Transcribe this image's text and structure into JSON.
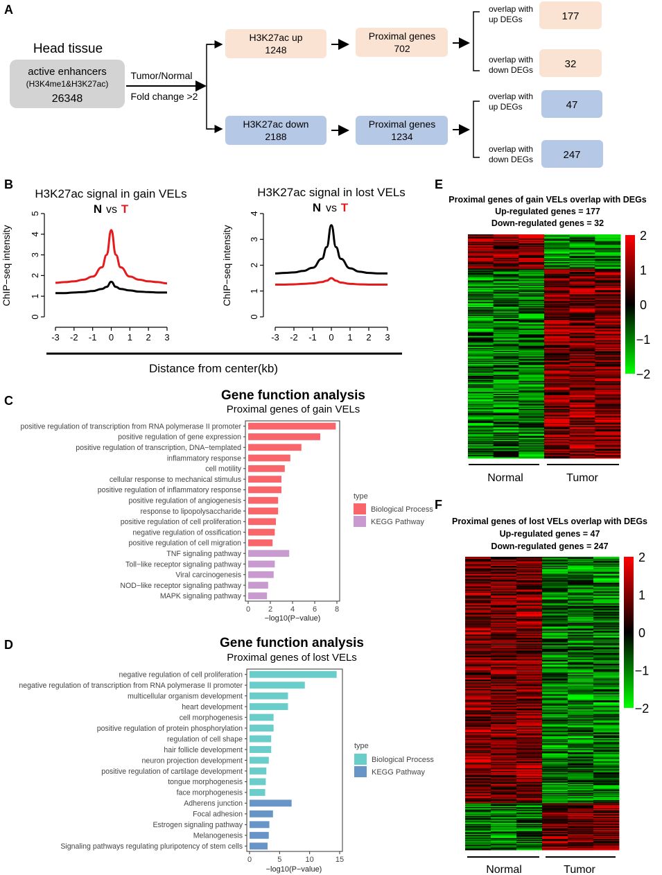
{
  "panelA": {
    "letter": "A",
    "head_tissue": "Head tissue",
    "enhancer_line1": "active enhancers",
    "enhancer_line2": "(H3K4me1&H3K27ac)",
    "enhancer_count": "26348",
    "arrow_top": "Tumor/Normal",
    "arrow_bottom": "Fold change >2",
    "up_label": "H3K27ac up",
    "up_count": "1248",
    "down_label": "H3K27ac down",
    "down_count": "2188",
    "prox_label": "Proximal genes",
    "prox_up_count": "702",
    "prox_down_count": "1234",
    "overlap_up_l1": "overlap with",
    "overlap_up_l2": "up DEGs",
    "overlap_down_l1": "overlap with",
    "overlap_down_l2": "down DEGs",
    "gain_up": "177",
    "gain_down": "32",
    "lost_up": "47",
    "lost_down": "247",
    "color_up": "#fbe3d3",
    "color_down": "#b5c8e6",
    "color_grey": "#d3d3d3"
  },
  "panelB": {
    "letter": "B",
    "left_title": "H3K27ac signal in gain VELs",
    "right_title": "H3K27ac signal in lost VELs",
    "n_label": "N",
    "vs_label": "vs",
    "t_label": "T",
    "ylabel": "ChIP−seq intensity",
    "xlabel": "Distance from center(kb)"
  },
  "panelC": {
    "letter": "C",
    "title": "Gene function analysis",
    "subtitle": "Proximal genes of gain VELs",
    "xlabel": "−log10(P−value)",
    "legend_title": "type",
    "legend_bp": "Biological Process",
    "legend_kegg": "KEGG Pathway"
  },
  "panelD": {
    "letter": "D",
    "title": "Gene function analysis",
    "subtitle": "Proximal genes of lost VELs",
    "xlabel": "−log10(P−value)",
    "legend_title": "type",
    "legend_bp": "Biological Process",
    "legend_kegg": "KEGG Pathway"
  },
  "panelE": {
    "letter": "E",
    "title": "Proximal genes of gain VELs overlap with DEGs",
    "line2": "Up-regulated genes = 177",
    "line3": "Down-regulated genes = 32",
    "group1": "Normal",
    "group2": "Tumor"
  },
  "panelF": {
    "letter": "F",
    "title": "Proximal genes of lost VELs overlap with DEGs",
    "line2": "Up-regulated genes = 47",
    "line3": "Down-regulated genes = 247",
    "group1": "Normal",
    "group2": "Tumor"
  },
  "chart_data": [
    {
      "id": "B-left",
      "type": "line",
      "title": "H3K27ac signal in gain VELs",
      "xlabel": "Distance from center(kb)",
      "ylabel": "ChIP−seq intensity",
      "x": [
        -3,
        -2.5,
        -2,
        -1.5,
        -1,
        -0.5,
        -0.25,
        0,
        0.25,
        0.5,
        1,
        1.5,
        2,
        2.5,
        3
      ],
      "xlim": [
        -3,
        3
      ],
      "ylim": [
        0,
        5
      ],
      "xticks": [
        -3,
        -2,
        -1,
        0,
        1,
        2,
        3
      ],
      "yticks": [
        0,
        1,
        2,
        3,
        4,
        5
      ],
      "series": [
        {
          "name": "T",
          "color": "#e41a1c",
          "values": [
            1.65,
            1.68,
            1.72,
            1.8,
            1.95,
            2.4,
            3.0,
            4.2,
            3.0,
            2.4,
            1.95,
            1.8,
            1.72,
            1.68,
            1.62
          ]
        },
        {
          "name": "N",
          "color": "#000000",
          "values": [
            1.15,
            1.15,
            1.18,
            1.2,
            1.25,
            1.35,
            1.45,
            1.7,
            1.45,
            1.35,
            1.28,
            1.22,
            1.2,
            1.18,
            1.18
          ]
        }
      ]
    },
    {
      "id": "B-right",
      "type": "line",
      "title": "H3K27ac signal in lost VELs",
      "xlabel": "Distance from center(kb)",
      "ylabel": "ChIP−seq intensity",
      "x": [
        -3,
        -2.5,
        -2,
        -1.5,
        -1,
        -0.5,
        -0.25,
        0,
        0.25,
        0.5,
        1,
        1.5,
        2,
        2.5,
        3
      ],
      "xlim": [
        -3,
        3
      ],
      "ylim": [
        0,
        4
      ],
      "xticks": [
        -3,
        -2,
        -1,
        0,
        1,
        2,
        3
      ],
      "yticks": [
        0,
        1,
        2,
        3,
        4
      ],
      "series": [
        {
          "name": "N",
          "color": "#000000",
          "values": [
            1.68,
            1.7,
            1.72,
            1.78,
            1.9,
            2.25,
            2.7,
            3.55,
            2.7,
            2.25,
            1.88,
            1.75,
            1.7,
            1.68,
            1.68
          ]
        },
        {
          "name": "T",
          "color": "#e41a1c",
          "values": [
            1.25,
            1.25,
            1.26,
            1.28,
            1.3,
            1.35,
            1.4,
            1.5,
            1.4,
            1.33,
            1.28,
            1.26,
            1.25,
            1.25,
            1.25
          ]
        }
      ]
    },
    {
      "id": "C",
      "type": "bar",
      "orientation": "horizontal",
      "title": "Gene function analysis",
      "subtitle": "Proximal genes of gain VELs",
      "xlabel": "−log10(P−value)",
      "xlim": [
        0,
        8
      ],
      "xticks": [
        0,
        2,
        4,
        6,
        8
      ],
      "categories": [
        "positive regulation of transcription from RNA polymerase II promoter",
        "positive regulation of gene expression",
        "positive regulation of transcription, DNA−templated",
        "inflammatory response",
        "cell motility",
        "cellular response to mechanical stimulus",
        "positive regulation of inflammatory response",
        "positive regulation of angiogenesis",
        "response to lipopolysaccharide",
        "positive regulation of cell proliferation",
        "negative regulation of ossification",
        "positive regulation of cell migration",
        "TNF signaling pathway",
        "Toll−like receptor signaling pathway",
        "Viral carcinogenesis",
        "NOD−like receptor signaling pathway",
        "MAPK signaling pathway"
      ],
      "values": [
        7.9,
        6.5,
        4.8,
        3.8,
        3.3,
        3.0,
        3.0,
        2.7,
        2.7,
        2.5,
        2.4,
        2.2,
        3.7,
        2.4,
        2.3,
        1.8,
        1.7
      ],
      "types": [
        "BP",
        "BP",
        "BP",
        "BP",
        "BP",
        "BP",
        "BP",
        "BP",
        "BP",
        "BP",
        "BP",
        "BP",
        "KEGG",
        "KEGG",
        "KEGG",
        "KEGG",
        "KEGG"
      ],
      "colors": {
        "BP": "#f8666b",
        "KEGG": "#c89ad0"
      }
    },
    {
      "id": "D",
      "type": "bar",
      "orientation": "horizontal",
      "title": "Gene function analysis",
      "subtitle": "Proximal genes of lost VELs",
      "xlabel": "−log10(P−value)",
      "xlim": [
        0,
        15
      ],
      "xticks": [
        0,
        5,
        10,
        15
      ],
      "categories": [
        "negative regulation of cell proliferation",
        "negative regulation of transcription from RNA polymerase II promoter",
        "multicellular organism development",
        "heart development",
        "cell morphogenesis",
        "positive regulation of protein phosphorylation",
        "regulation of cell shape",
        "hair follicle development",
        "neuron projection development",
        "positive regulation of cartilage development",
        "tongue morphogenesis",
        "face morphogenesis",
        "Adherens junction",
        "Focal adhesion",
        "Estrogen signaling pathway",
        "Melanogenesis",
        "Signaling pathways regulating pluripotency of stem cells"
      ],
      "values": [
        14.5,
        9.2,
        6.4,
        6.4,
        4.0,
        4.0,
        3.6,
        3.6,
        3.2,
        2.8,
        2.7,
        2.6,
        7.0,
        3.9,
        3.3,
        3.2,
        3.0
      ],
      "types": [
        "BP",
        "BP",
        "BP",
        "BP",
        "BP",
        "BP",
        "BP",
        "BP",
        "BP",
        "BP",
        "BP",
        "BP",
        "KEGG",
        "KEGG",
        "KEGG",
        "KEGG",
        "KEGG"
      ],
      "colors": {
        "BP": "#6bcdc9",
        "KEGG": "#6795c8"
      }
    },
    {
      "id": "E",
      "type": "heatmap",
      "title": "Proximal genes of gain VELs overlap with DEGs",
      "columns": [
        "Normal",
        "Normal",
        "Normal",
        "Tumor",
        "Tumor",
        "Tumor"
      ],
      "rows": 209,
      "up_rows": 177,
      "down_rows": 32,
      "color_scale": {
        "min": -2,
        "max": 2,
        "ticks": [
          2,
          1,
          0,
          -1,
          -2
        ]
      }
    },
    {
      "id": "F",
      "type": "heatmap",
      "title": "Proximal genes of lost VELs overlap with DEGs",
      "columns": [
        "Normal",
        "Normal",
        "Normal",
        "Tumor",
        "Tumor",
        "Tumor"
      ],
      "rows": 294,
      "up_rows": 47,
      "down_rows": 247,
      "color_scale": {
        "min": -2,
        "max": 2,
        "ticks": [
          2,
          1,
          0,
          -1,
          -2
        ]
      }
    }
  ]
}
